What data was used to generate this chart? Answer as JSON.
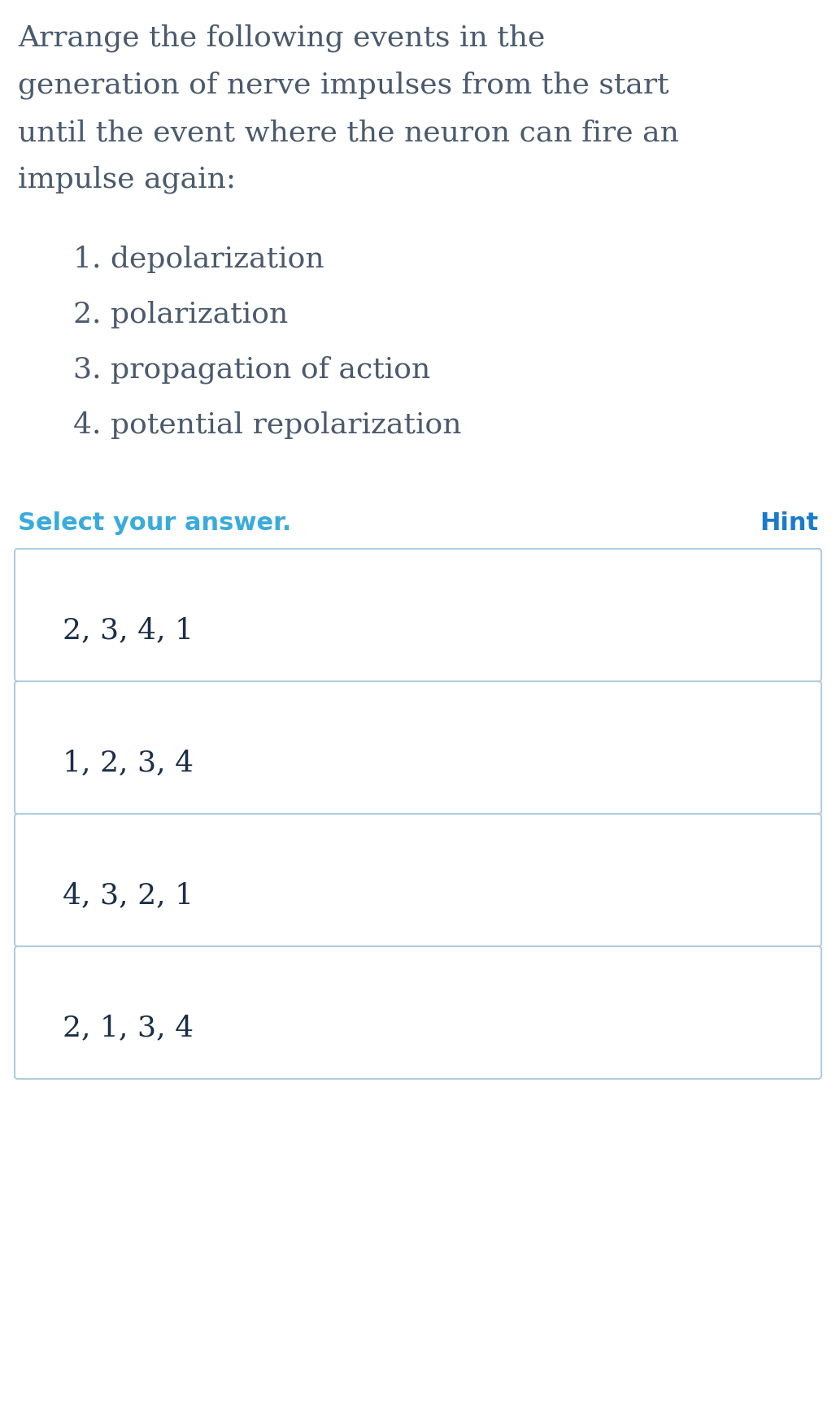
{
  "background_color": "#ffffff",
  "question_text_lines": [
    "Arrange the following events in the",
    "generation of nerve impulses from the start",
    "until the event where the neuron can fire an",
    "impulse again:"
  ],
  "question_text_color": "#4a5a6e",
  "question_font_size": 26,
  "list_items": [
    "1. depolarization",
    "2. polarization",
    "3. propagation of action",
    "4. potential repolarization"
  ],
  "list_font_size": 26,
  "list_text_color": "#4a5a6e",
  "select_text": "Select your answer.",
  "select_font_size": 22,
  "select_color": "#3aabdd",
  "hint_text": "Hint",
  "hint_color": "#1a7acc",
  "hint_font_size": 22,
  "answer_options": [
    "2, 3, 4, 1",
    "1, 2, 3, 4",
    "4, 3, 2, 1",
    "2, 1, 3, 4"
  ],
  "answer_font_size": 26,
  "answer_text_color": "#1a2e4a",
  "box_border_color": "#b0cce0",
  "box_bg_color": "#ffffff",
  "figsize": [
    10.28,
    17.38
  ],
  "dpi": 100
}
